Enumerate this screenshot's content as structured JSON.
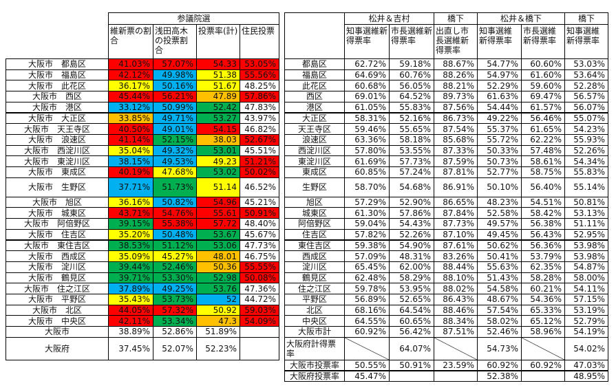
{
  "left_table": {
    "group_header": "参議院選",
    "columns": [
      "維新票の割合",
      "浅田高木の投票割合",
      "投票率(計)",
      "住民投票"
    ],
    "rows": [
      {
        "label": "大阪市　都島区",
        "cells": [
          {
            "text": "41.03%",
            "fill": "#ff0000"
          },
          {
            "text": "57.07%",
            "fill": "#ff0000"
          },
          {
            "text": "54.33",
            "fill": "#ff0000"
          },
          {
            "text": "53.05%",
            "fill": "#ff0000"
          }
        ]
      },
      {
        "label": "大阪市　福島区",
        "cells": [
          {
            "text": "42.12%",
            "fill": "#ff0000"
          },
          {
            "text": "49.98%",
            "fill": "#00b0f0"
          },
          {
            "text": "51.38",
            "fill": "#ffff00"
          },
          {
            "text": "55.56%",
            "fill": "#ff0000"
          }
        ]
      },
      {
        "label": "大阪市　此花区",
        "cells": [
          {
            "text": "36.17%",
            "fill": "#ffff00"
          },
          {
            "text": "50.16%",
            "fill": "#00b0f0"
          },
          {
            "text": "51.67",
            "fill": "#ffff00"
          },
          {
            "text": "48.25%"
          }
        ]
      },
      {
        "label": "大阪市　西区",
        "cells": [
          {
            "text": "45.44%",
            "fill": "#ff0000"
          },
          {
            "text": "56.21%",
            "fill": "#ff0000"
          },
          {
            "text": "47.89",
            "fill": "#ffc000"
          },
          {
            "text": "57.86%",
            "fill": "#ff0000"
          }
        ]
      },
      {
        "label": "大阪市　港区",
        "cells": [
          {
            "text": "33.12%",
            "fill": "#00b0f0"
          },
          {
            "text": "50.99%",
            "fill": "#00b0f0"
          },
          {
            "text": "52.42",
            "fill": "#00b050"
          },
          {
            "text": "47.83%"
          }
        ]
      },
      {
        "label": "大阪市　大正区",
        "cells": [
          {
            "text": "33.85%",
            "fill": "#ffc000"
          },
          {
            "text": "49.71%",
            "fill": "#00b0f0"
          },
          {
            "text": "53.27",
            "fill": "#00b050"
          },
          {
            "text": "43.97%"
          }
        ]
      },
      {
        "label": "大阪市　天王寺区",
        "cells": [
          {
            "text": "40.50%",
            "fill": "#ff0000"
          },
          {
            "text": "49.01%",
            "fill": "#00b0f0"
          },
          {
            "text": "54.15",
            "fill": "#ff0000"
          },
          {
            "text": "46.82%"
          }
        ]
      },
      {
        "label": "大阪市　浪速区",
        "cells": [
          {
            "text": "41.14%",
            "fill": "#ff0000"
          },
          {
            "text": "52.15%",
            "fill": "#00b050"
          },
          {
            "text": "38.03",
            "fill": "#ffc000"
          },
          {
            "text": "52.67%",
            "fill": "#ff0000"
          }
        ]
      },
      {
        "label": "大阪市　西淀川区",
        "cells": [
          {
            "text": "35.04%",
            "fill": "#ffff00"
          },
          {
            "text": "49.32%",
            "fill": "#00b0f0"
          },
          {
            "text": "53.01",
            "fill": "#00b050"
          },
          {
            "text": "45.51%"
          }
        ]
      },
      {
        "label": "大阪市　東淀川区",
        "cells": [
          {
            "text": "38.15%",
            "fill": "#00b0f0"
          },
          {
            "text": "49.53%",
            "fill": "#00b0f0"
          },
          {
            "text": "49.23",
            "fill": "#ffff00"
          },
          {
            "text": "51.21%",
            "fill": "#ff0000"
          }
        ]
      },
      {
        "label": "大阪市　東成区",
        "cells": [
          {
            "text": "40.19%",
            "fill": "#ff0000"
          },
          {
            "text": "47.68%",
            "fill": "#ffff00"
          },
          {
            "text": "53.02",
            "fill": "#00b050"
          },
          {
            "text": "50.02%",
            "fill": "#ff0000"
          }
        ]
      },
      {
        "label": "大阪市　生野区",
        "cells": [
          {
            "text": "37.71%",
            "fill": "#00b0f0"
          },
          {
            "text": "51.73%",
            "fill": "#00b050"
          },
          {
            "text": "51.14",
            "fill": "#ffff00"
          },
          {
            "text": "46.52%"
          }
        ]
      },
      {
        "label": "大阪市　旭区",
        "cells": [
          {
            "text": "36.16%",
            "fill": "#ffff00"
          },
          {
            "text": "50.82%",
            "fill": "#00b0f0"
          },
          {
            "text": "54.96",
            "fill": "#ff0000"
          },
          {
            "text": "45.21%"
          }
        ]
      },
      {
        "label": "大阪市　城東区",
        "cells": [
          {
            "text": "43.71%",
            "fill": "#ff0000"
          },
          {
            "text": "54.76%",
            "fill": "#ff0000"
          },
          {
            "text": "55.61",
            "fill": "#ff0000"
          },
          {
            "text": "50.91%",
            "fill": "#ff0000"
          }
        ]
      },
      {
        "label": "大阪市　阿倍野区",
        "cells": [
          {
            "text": "39.15%",
            "fill": "#00b050"
          },
          {
            "text": "55.38%",
            "fill": "#ff0000"
          },
          {
            "text": "57.72",
            "fill": "#ff0000"
          },
          {
            "text": "48.40%"
          }
        ]
      },
      {
        "label": "大阪市　住吉区",
        "cells": [
          {
            "text": "35.20%",
            "fill": "#ffff00"
          },
          {
            "text": "50.48%",
            "fill": "#00b0f0"
          },
          {
            "text": "53.67",
            "fill": "#00b050"
          },
          {
            "text": "45.67%"
          }
        ]
      },
      {
        "label": "大阪市　東住吉区",
        "cells": [
          {
            "text": "38.53%",
            "fill": "#00b050"
          },
          {
            "text": "51.12%",
            "fill": "#00b050"
          },
          {
            "text": "53.06",
            "fill": "#00b050"
          },
          {
            "text": "47.73%"
          }
        ]
      },
      {
        "label": "大阪市　西成区",
        "cells": [
          {
            "text": "35.09%",
            "fill": "#ffff00"
          },
          {
            "text": "45.27%",
            "fill": "#ffff00"
          },
          {
            "text": "48.01",
            "fill": "#ffc000"
          },
          {
            "text": "46.75%"
          }
        ]
      },
      {
        "label": "大阪市　淀川区",
        "cells": [
          {
            "text": "39.44%",
            "fill": "#00b050"
          },
          {
            "text": "52.46%",
            "fill": "#00b050"
          },
          {
            "text": "50.36",
            "fill": "#ffc000"
          },
          {
            "text": "55.55%",
            "fill": "#ff0000"
          }
        ]
      },
      {
        "label": "大阪市　鶴見区",
        "cells": [
          {
            "text": "39.71%",
            "fill": "#00b050"
          },
          {
            "text": "53.30%",
            "fill": "#00b050"
          },
          {
            "text": "52.98",
            "fill": "#00b050"
          },
          {
            "text": "50.08%",
            "fill": "#ff0000"
          }
        ]
      },
      {
        "label": "大阪市　住之江区",
        "cells": [
          {
            "text": "37.89%",
            "fill": "#00b0f0"
          },
          {
            "text": "49.25%",
            "fill": "#00b0f0"
          },
          {
            "text": "53.76",
            "fill": "#00b050"
          },
          {
            "text": "47.36%"
          }
        ]
      },
      {
        "label": "大阪市　平野区",
        "cells": [
          {
            "text": "35.43%",
            "fill": "#ffff00"
          },
          {
            "text": "53.73%",
            "fill": "#00b050"
          },
          {
            "text": "52",
            "fill": "#00b0f0"
          },
          {
            "text": "44.72%"
          }
        ]
      },
      {
        "label": "大阪市　北区",
        "cells": [
          {
            "text": "44.05%",
            "fill": "#ff0000"
          },
          {
            "text": "57.32%",
            "fill": "#ff0000"
          },
          {
            "text": "50.92",
            "fill": "#ffff00"
          },
          {
            "text": "59.03%",
            "fill": "#ff0000"
          }
        ]
      },
      {
        "label": "大阪市　中央区",
        "cells": [
          {
            "text": "42.11%",
            "fill": "#ff0000"
          },
          {
            "text": "53.34%",
            "fill": "#00b050"
          },
          {
            "text": "47.3",
            "fill": "#ffc000"
          },
          {
            "text": "54.09%",
            "fill": "#ff0000"
          }
        ]
      },
      {
        "label": "大阪市",
        "cells": [
          {
            "text": "38.89%"
          },
          {
            "text": "52.86%"
          },
          {
            "text": "51.89%"
          },
          null
        ]
      },
      {
        "label": "大阪府",
        "cells": [
          {
            "text": "37.45%"
          },
          {
            "text": "52.07%"
          },
          {
            "text": "52.23%"
          },
          null
        ]
      }
    ]
  },
  "right_table": {
    "groups": [
      {
        "label": "松井＆吉村",
        "columns": [
          "知事選維新得票率",
          "市長選維新得票率"
        ]
      },
      {
        "label": "橋下",
        "columns": [
          "出直し市長選維新得票率"
        ]
      },
      {
        "label": "松井＆橋下",
        "columns": [
          "知事選維新得票率",
          "市長選維新得票率"
        ]
      },
      {
        "label": "橋下",
        "columns": [
          "知事選維新得票率"
        ]
      }
    ],
    "rows": [
      {
        "label": "都島区",
        "cells": [
          "62.72%",
          "59.18%",
          "88.67%",
          "54.77%",
          "60.60%",
          "53.03%"
        ]
      },
      {
        "label": "福島区",
        "cells": [
          "64.69%",
          "60.76%",
          "88.26%",
          "54.97%",
          "61.60%",
          "53.64%"
        ]
      },
      {
        "label": "此花区",
        "cells": [
          "60.68%",
          "56.05%",
          "88.21%",
          "52.29%",
          "59.60%",
          "52.28%"
        ]
      },
      {
        "label": "西区",
        "cells": [
          "69.01%",
          "64.52%",
          "89.73%",
          "61.63%",
          "69.47%",
          "56.57%"
        ]
      },
      {
        "label": "港区",
        "cells": [
          "61.05%",
          "55.83%",
          "87.56%",
          "54.44%",
          "61.57%",
          "56.07%"
        ]
      },
      {
        "label": "大正区",
        "cells": [
          "58.31%",
          "52.16%",
          "86.73%",
          "49.22%",
          "56.46%",
          "55.07%"
        ]
      },
      {
        "label": "天王寺区",
        "cells": [
          "59.46%",
          "55.65%",
          "87.54%",
          "55.37%",
          "61.65%",
          "54.23%"
        ]
      },
      {
        "label": "浪速区",
        "cells": [
          "63.36%",
          "58.18%",
          "85.68%",
          "55.72%",
          "62.22%",
          "55.93%"
        ]
      },
      {
        "label": "西淀川区",
        "cells": [
          "57.80%",
          "53.55%",
          "87.33%",
          "50.33%",
          "57.48%",
          "52.26%"
        ]
      },
      {
        "label": "東淀川区",
        "cells": [
          "61.69%",
          "57.73%",
          "87.59%",
          "50.73%",
          "58.61%",
          "54.34%"
        ]
      },
      {
        "label": "東成区",
        "cells": [
          "60.85%",
          "57.24%",
          "87.81%",
          "52.77%",
          "58.75%",
          "55.83%"
        ]
      },
      {
        "label": "生野区",
        "cells": [
          "58.70%",
          "54.68%",
          "86.91%",
          "50.10%",
          "56.40%",
          "55.14%"
        ]
      },
      {
        "label": "旭区",
        "cells": [
          "57.29%",
          "52.90%",
          "86.65%",
          "48.23%",
          "54.51%",
          "50.81%"
        ]
      },
      {
        "label": "城東区",
        "cells": [
          "61.30%",
          "57.86%",
          "87.84%",
          "52.58%",
          "58.42%",
          "53.13%"
        ]
      },
      {
        "label": "阿倍野区",
        "cells": [
          "59.04%",
          "54.43%",
          "87.73%",
          "49.57%",
          "56.38%",
          "51.11%"
        ]
      },
      {
        "label": "住吉区",
        "cells": [
          "57.82%",
          "52.26%",
          "87.10%",
          "49.45%",
          "56.43%",
          "52.95%"
        ]
      },
      {
        "label": "東住吉区",
        "cells": [
          "59.38%",
          "54.90%",
          "87.61%",
          "50.62%",
          "56.36%",
          "53.98%"
        ]
      },
      {
        "label": "西成区",
        "cells": [
          "57.09%",
          "48.31%",
          "83.26%",
          "50.41%",
          "53.79%",
          "53.98%"
        ]
      },
      {
        "label": "淀川区",
        "cells": [
          "65.45%",
          "62.00%",
          "88.44%",
          "55.63%",
          "62.35%",
          "54.87%"
        ]
      },
      {
        "label": "鶴見区",
        "cells": [
          "62.48%",
          "58.29%",
          "88.10%",
          "51.43%",
          "58.28%",
          "58.00%"
        ]
      },
      {
        "label": "住之江区",
        "cells": [
          "59.78%",
          "53.95%",
          "88.02%",
          "54.58%",
          "60.21%",
          "54.11%"
        ]
      },
      {
        "label": "平野区",
        "cells": [
          "56.89%",
          "52.65%",
          "86.43%",
          "48.67%",
          "54.36%",
          "57.15%"
        ]
      },
      {
        "label": "北区",
        "cells": [
          "68.16%",
          "64.54%",
          "88.46%",
          "57.54%",
          "65.33%",
          "53.19%"
        ]
      },
      {
        "label": "中央区",
        "cells": [
          "64.55%",
          "60.65%",
          "88.34%",
          "58.02%",
          "65.12%",
          "52.79%"
        ]
      },
      {
        "label": "大阪市計",
        "cells": [
          "60.92%",
          "56.42%",
          "87.51%",
          "52.46%",
          "58.96%",
          "54.19%"
        ]
      },
      {
        "label": "大阪府計得票率",
        "cells": [
          {
            "diagonal": true
          },
          "64.07%",
          {
            "diagonal": true
          },
          "54.73%",
          {
            "diagonal": true
          },
          "54.02%"
        ]
      },
      {
        "label": "大阪市投票率",
        "cells": [
          "50.55%",
          "50.91%",
          "23.59%",
          "60.92%",
          "60.92%",
          "47.03%"
        ]
      },
      {
        "label": "大阪府投票率",
        "cells": [
          "45.47%",
          null,
          null,
          "52.38%",
          null,
          "48.95%"
        ]
      }
    ]
  }
}
